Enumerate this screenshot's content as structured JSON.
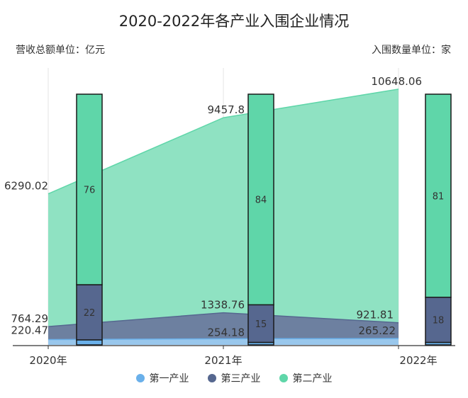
{
  "title": "2020-2022年各产业入围企业情况",
  "unit_left": "营收总额单位：亿元",
  "unit_right": "入围数量单位：家",
  "colors": {
    "primary": "#6ab0ea",
    "tertiary": "#56678f",
    "secondary": "#5fd6a9",
    "secondary_area": "#8fe2c2",
    "tertiary_area": "#6b7a9e",
    "primary_area": "#9ccaf0"
  },
  "chart_data": {
    "type": "bar",
    "categories": [
      "2020年",
      "2021年",
      "2022年"
    ],
    "revenue_ylim": [
      0,
      12000
    ],
    "count_ylim": [
      0,
      100
    ],
    "revenue_series": [
      {
        "name": "第一产业",
        "values": [
          220.47,
          254.18,
          265.22
        ]
      },
      {
        "name": "第三产业",
        "values": [
          764.29,
          1338.76,
          921.81
        ]
      },
      {
        "name": "第二产业",
        "values": [
          6290.02,
          9457.8,
          10648.06
        ]
      }
    ],
    "revenue_labels": {
      "第一产业": [
        "220.47",
        "254.18",
        "265.22"
      ],
      "第三产业": [
        "764.29",
        "1338.76",
        "921.81"
      ],
      "第二产业": [
        "6290.02",
        "9457.8",
        "10648.06"
      ]
    },
    "count_series": [
      {
        "name": "第一产业",
        "values": [
          2,
          1,
          1
        ]
      },
      {
        "name": "第三产业",
        "values": [
          22,
          15,
          18
        ]
      },
      {
        "name": "第二产业",
        "values": [
          76,
          84,
          81
        ]
      }
    ],
    "count_labels": {
      "第三产业": [
        "22",
        "15",
        "18"
      ],
      "第二产业": [
        "76",
        "84",
        "81"
      ]
    },
    "legend": [
      "第一产业",
      "第三产业",
      "第二产业"
    ],
    "legend_placement": "bottom"
  }
}
